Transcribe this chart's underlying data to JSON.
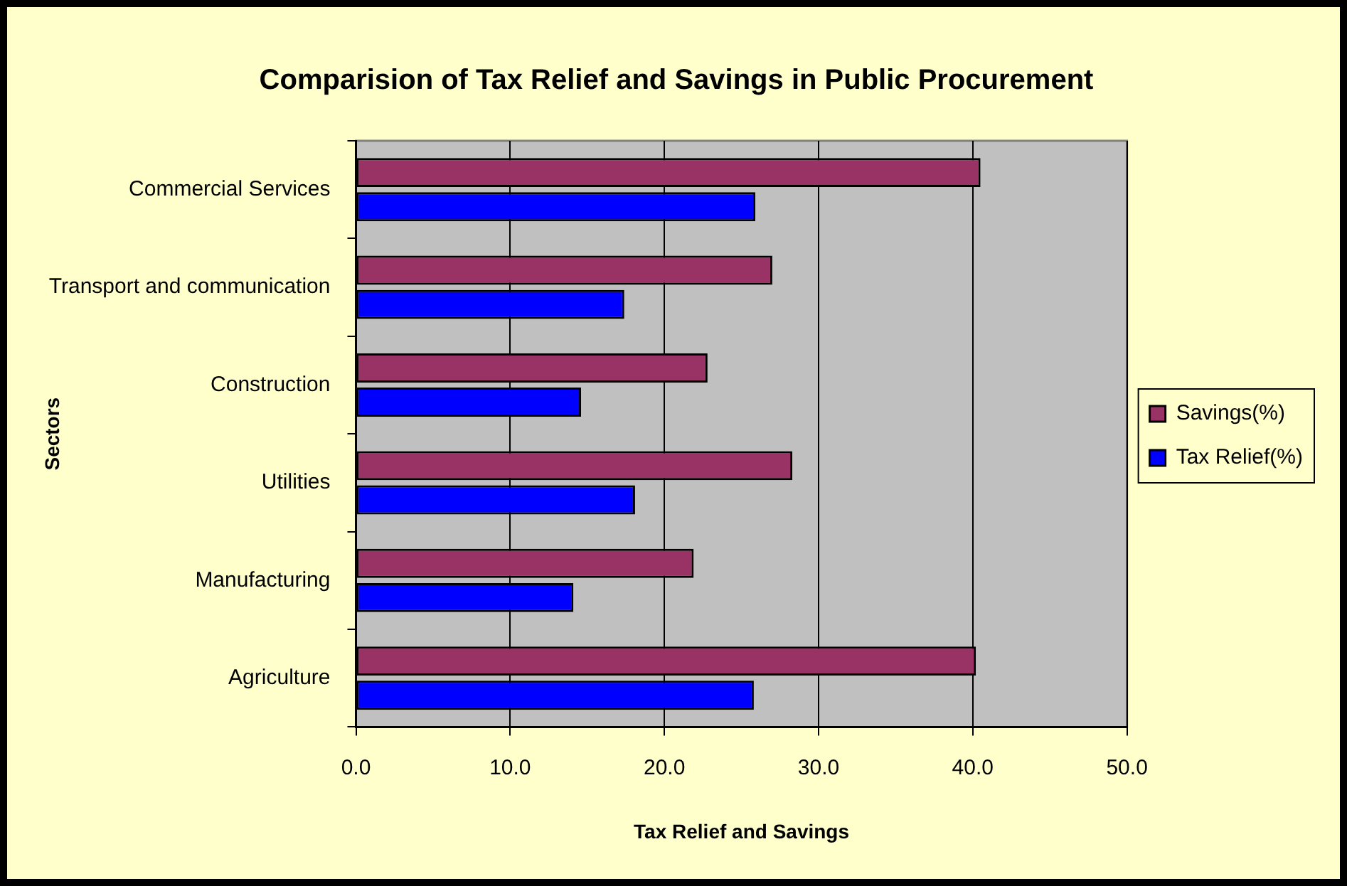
{
  "chart_data": {
    "type": "bar",
    "orientation": "horizontal",
    "title": "Comparision of Tax Relief and Savings in Public Procurement",
    "xlabel": "Tax Relief and Savings",
    "ylabel": "Sectors",
    "categories": [
      "Commercial Services",
      "Transport and communication",
      "Construction",
      "Utilities",
      "Manufacturing",
      "Agriculture"
    ],
    "series": [
      {
        "name": "Savings(%)",
        "color": "#993366",
        "values": [
          40.5,
          27.0,
          22.8,
          28.3,
          21.9,
          40.2
        ]
      },
      {
        "name": "Tax Relief(%)",
        "color": "#0000ff",
        "values": [
          25.9,
          17.4,
          14.6,
          18.1,
          14.1,
          25.8
        ]
      }
    ],
    "xlim": [
      0,
      50
    ],
    "xticks": [
      {
        "value": 0,
        "label": "0.0"
      },
      {
        "value": 10,
        "label": "10.0"
      },
      {
        "value": 20,
        "label": "20.0"
      },
      {
        "value": 30,
        "label": "30.0"
      },
      {
        "value": 40,
        "label": "40.0"
      },
      {
        "value": 50,
        "label": "50.0"
      }
    ],
    "grid": "x",
    "legend": "right"
  }
}
